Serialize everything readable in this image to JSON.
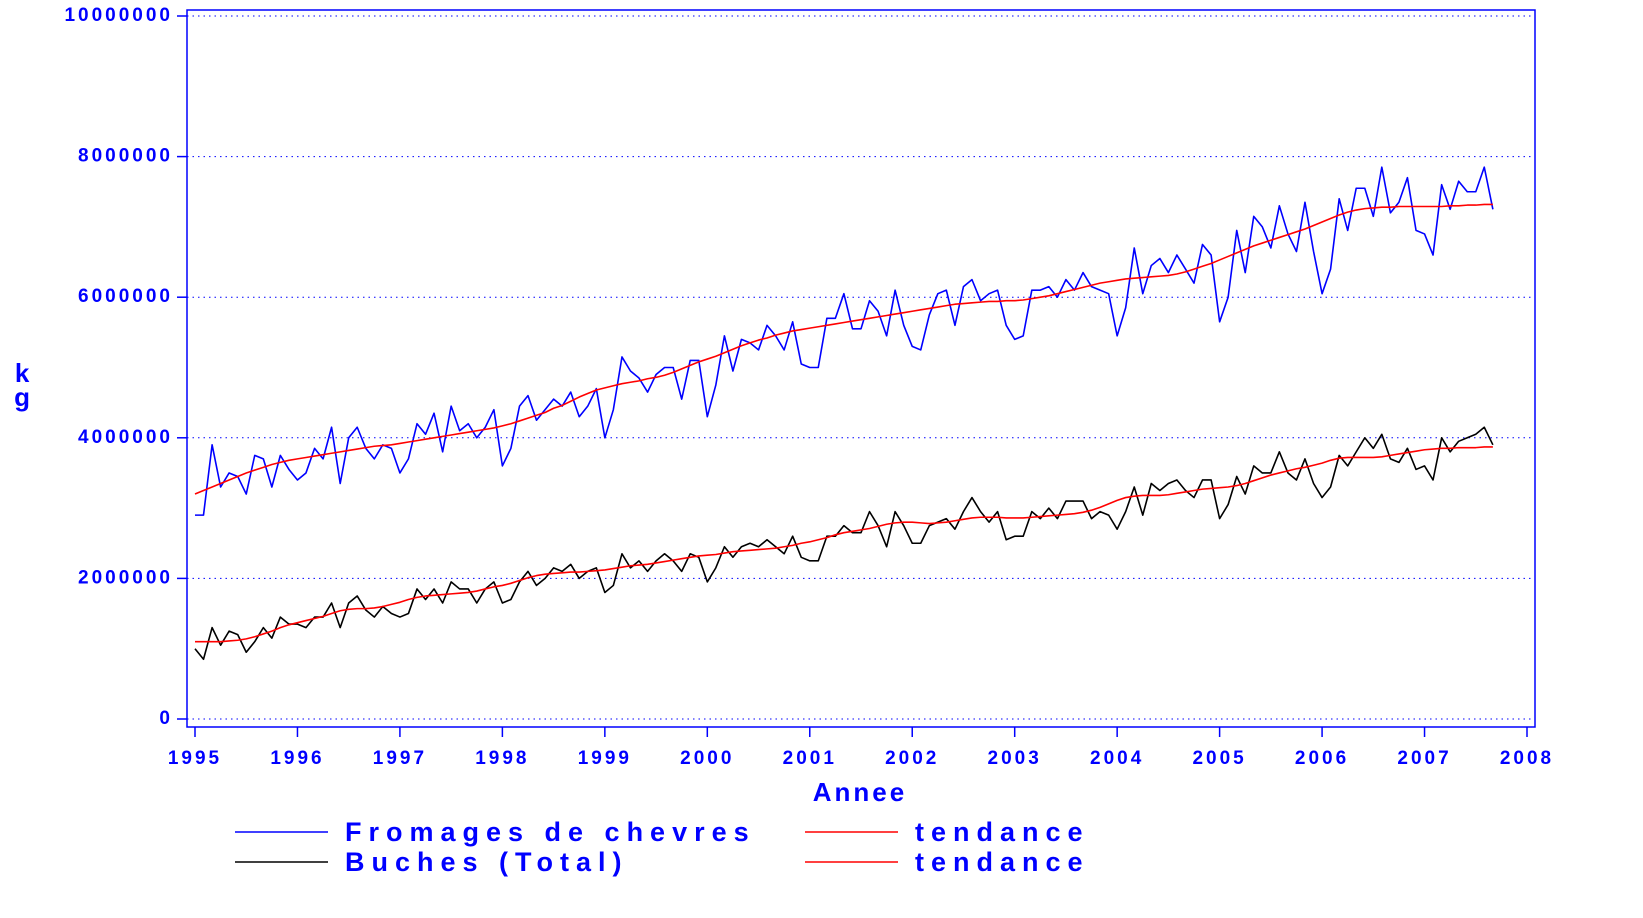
{
  "chart_data": {
    "type": "line",
    "xlabel": "Annee",
    "ylabel": "kg",
    "xlim": [
      1995,
      2008
    ],
    "ylim": [
      0,
      10000000
    ],
    "xticks": [
      1995,
      1996,
      1997,
      1998,
      1999,
      2000,
      2001,
      2002,
      2003,
      2004,
      2005,
      2006,
      2007,
      2008
    ],
    "yticks": [
      0,
      2000000,
      4000000,
      6000000,
      8000000,
      10000000
    ],
    "grid": true,
    "legend": "bottom",
    "x": [
      1995.0,
      1995.083,
      1995.167,
      1995.25,
      1995.333,
      1995.417,
      1995.5,
      1995.583,
      1995.667,
      1995.75,
      1995.833,
      1995.917,
      1996.0,
      1996.083,
      1996.167,
      1996.25,
      1996.333,
      1996.417,
      1996.5,
      1996.583,
      1996.667,
      1996.75,
      1996.833,
      1996.917,
      1997.0,
      1997.083,
      1997.167,
      1997.25,
      1997.333,
      1997.417,
      1997.5,
      1997.583,
      1997.667,
      1997.75,
      1997.833,
      1997.917,
      1998.0,
      1998.083,
      1998.167,
      1998.25,
      1998.333,
      1998.417,
      1998.5,
      1998.583,
      1998.667,
      1998.75,
      1998.833,
      1998.917,
      1999.0,
      1999.083,
      1999.167,
      1999.25,
      1999.333,
      1999.417,
      1999.5,
      1999.583,
      1999.667,
      1999.75,
      1999.833,
      1999.917,
      2000.0,
      2000.083,
      2000.167,
      2000.25,
      2000.333,
      2000.417,
      2000.5,
      2000.583,
      2000.667,
      2000.75,
      2000.833,
      2000.917,
      2001.0,
      2001.083,
      2001.167,
      2001.25,
      2001.333,
      2001.417,
      2001.5,
      2001.583,
      2001.667,
      2001.75,
      2001.833,
      2001.917,
      2002.0,
      2002.083,
      2002.167,
      2002.25,
      2002.333,
      2002.417,
      2002.5,
      2002.583,
      2002.667,
      2002.75,
      2002.833,
      2002.917,
      2003.0,
      2003.083,
      2003.167,
      2003.25,
      2003.333,
      2003.417,
      2003.5,
      2003.583,
      2003.667,
      2003.75,
      2003.833,
      2003.917,
      2004.0,
      2004.083,
      2004.167,
      2004.25,
      2004.333,
      2004.417,
      2004.5,
      2004.583,
      2004.667,
      2004.75,
      2004.833,
      2004.917,
      2005.0,
      2005.083,
      2005.167,
      2005.25,
      2005.333,
      2005.417,
      2005.5,
      2005.583,
      2005.667,
      2005.75,
      2005.833,
      2005.917,
      2006.0,
      2006.083,
      2006.167,
      2006.25,
      2006.333,
      2006.417,
      2006.5,
      2006.583,
      2006.667,
      2006.75,
      2006.833,
      2006.917,
      2007.0,
      2007.083,
      2007.167,
      2007.25,
      2007.333,
      2007.417,
      2007.5,
      2007.583,
      2007.667
    ],
    "series": [
      {
        "name": "Fromages de chevres",
        "color": "#0000ff",
        "values": [
          2900000.0,
          2900000.0,
          3900000.0,
          3300000.0,
          3500000.0,
          3450000.0,
          3200000.0,
          3750000.0,
          3700000.0,
          3300000.0,
          3750000.0,
          3550000.0,
          3400000.0,
          3500000.0,
          3850000.0,
          3700000.0,
          4150000.0,
          3350000.0,
          4000000.0,
          4150000.0,
          3850000.0,
          3700000.0,
          3900000.0,
          3850000.0,
          3500000.0,
          3700000.0,
          4200000.0,
          4050000.0,
          4350000.0,
          3800000.0,
          4450000.0,
          4100000.0,
          4200000.0,
          4000000.0,
          4150000.0,
          4400000.0,
          3600000.0,
          3850000.0,
          4450000.0,
          4600000.0,
          4250000.0,
          4400000.0,
          4550000.0,
          4450000.0,
          4650000.0,
          4300000.0,
          4450000.0,
          4700000.0,
          4000000.0,
          4400000.0,
          5150000.0,
          4950000.0,
          4850000.0,
          4650000.0,
          4900000.0,
          5000000.0,
          5000000.0,
          4550000.0,
          5100000.0,
          5100000.0,
          4300000.0,
          4750000.0,
          5450000.0,
          4950000.0,
          5400000.0,
          5350000.0,
          5250000.0,
          5600000.0,
          5450000.0,
          5250000.0,
          5650000.0,
          5050000.0,
          5000000.0,
          5000000.0,
          5700000.0,
          5700000.0,
          6050000.0,
          5550000.0,
          5550000.0,
          5950000.0,
          5800000.0,
          5450000.0,
          6100000.0,
          5600000.0,
          5300000.0,
          5250000.0,
          5750000.0,
          6050000.0,
          6100000.0,
          5600000.0,
          6150000.0,
          6250000.0,
          5950000.0,
          6050000.0,
          6100000.0,
          5600000.0,
          5400000.0,
          5450000.0,
          6100000.0,
          6100000.0,
          6150000.0,
          6000000.0,
          6250000.0,
          6100000.0,
          6350000.0,
          6150000.0,
          6100000.0,
          6050000.0,
          5450000.0,
          5850000.0,
          6700000.0,
          6050000.0,
          6450000.0,
          6550000.0,
          6350000.0,
          6600000.0,
          6400000.0,
          6200000.0,
          6750000.0,
          6600000.0,
          5650000.0,
          6000000.0,
          6950000.0,
          6350000.0,
          7150000.0,
          7000000.0,
          6700000.0,
          7300000.0,
          6900000.0,
          6650000.0,
          7350000.0,
          6650000.0,
          6050000.0,
          6400000.0,
          7400000.0,
          6950000.0,
          7550000.0,
          7550000.0,
          7150000.0,
          7850000.0,
          7200000.0,
          7350000.0,
          7700000.0,
          6950000.0,
          6900000.0,
          6600000.0,
          7600000.0,
          7250000.0,
          7650000.0,
          7500000.0,
          7500000.0,
          7850000.0,
          7250000.0
        ]
      },
      {
        "name": "tendance",
        "color": "#ff0000",
        "values": [
          3200000.0,
          3250000.0,
          3300000.0,
          3350000.0,
          3400000.0,
          3450000.0,
          3500000.0,
          3540000.0,
          3580000.0,
          3620000.0,
          3650000.0,
          3680000.0,
          3700000.0,
          3720000.0,
          3740000.0,
          3760000.0,
          3780000.0,
          3800000.0,
          3820000.0,
          3840000.0,
          3860000.0,
          3880000.0,
          3890000.0,
          3900000.0,
          3920000.0,
          3940000.0,
          3960000.0,
          3980000.0,
          4000000.0,
          4020000.0,
          4040000.0,
          4060000.0,
          4080000.0,
          4100000.0,
          4120000.0,
          4140000.0,
          4170000.0,
          4200000.0,
          4240000.0,
          4280000.0,
          4320000.0,
          4360000.0,
          4420000.0,
          4460000.0,
          4520000.0,
          4580000.0,
          4630000.0,
          4680000.0,
          4710000.0,
          4740000.0,
          4770000.0,
          4790000.0,
          4810000.0,
          4840000.0,
          4860000.0,
          4890000.0,
          4930000.0,
          4980000.0,
          5030000.0,
          5080000.0,
          5120000.0,
          5160000.0,
          5210000.0,
          5260000.0,
          5310000.0,
          5350000.0,
          5390000.0,
          5420000.0,
          5460000.0,
          5490000.0,
          5520000.0,
          5540000.0,
          5560000.0,
          5580000.0,
          5600000.0,
          5620000.0,
          5640000.0,
          5660000.0,
          5680000.0,
          5700000.0,
          5720000.0,
          5740000.0,
          5760000.0,
          5780000.0,
          5800000.0,
          5820000.0,
          5840000.0,
          5860000.0,
          5880000.0,
          5900000.0,
          5910000.0,
          5920000.0,
          5930000.0,
          5940000.0,
          5940000.0,
          5950000.0,
          5950000.0,
          5960000.0,
          5980000.0,
          6000000.0,
          6020000.0,
          6050000.0,
          6080000.0,
          6110000.0,
          6140000.0,
          6170000.0,
          6200000.0,
          6220000.0,
          6240000.0,
          6260000.0,
          6270000.0,
          6280000.0,
          6290000.0,
          6300000.0,
          6310000.0,
          6330000.0,
          6360000.0,
          6400000.0,
          6440000.0,
          6480000.0,
          6530000.0,
          6580000.0,
          6630000.0,
          6680000.0,
          6730000.0,
          6770000.0,
          6810000.0,
          6850000.0,
          6890000.0,
          6930000.0,
          6970000.0,
          7020000.0,
          7070000.0,
          7120000.0,
          7170000.0,
          7210000.0,
          7240000.0,
          7260000.0,
          7270000.0,
          7280000.0,
          7280000.0,
          7290000.0,
          7290000.0,
          7290000.0,
          7290000.0,
          7290000.0,
          7290000.0,
          7300000.0,
          7300000.0,
          7310000.0,
          7310000.0,
          7320000.0,
          7320000.0
        ]
      },
      {
        "name": "Buches (Total)",
        "color": "#000000",
        "values": [
          1000000.0,
          850000.0,
          1300000.0,
          1050000.0,
          1250000.0,
          1200000.0,
          950000.0,
          1100000.0,
          1300000.0,
          1150000.0,
          1450000.0,
          1350000.0,
          1350000.0,
          1300000.0,
          1450000.0,
          1450000.0,
          1650000.0,
          1300000.0,
          1650000.0,
          1750000.0,
          1550000.0,
          1450000.0,
          1600000.0,
          1500000.0,
          1450000.0,
          1500000.0,
          1850000.0,
          1700000.0,
          1850000.0,
          1650000.0,
          1950000.0,
          1850000.0,
          1850000.0,
          1650000.0,
          1850000.0,
          1950000.0,
          1650000.0,
          1700000.0,
          1950000.0,
          2100000.0,
          1900000.0,
          2000000.0,
          2150000.0,
          2100000.0,
          2200000.0,
          2000000.0,
          2100000.0,
          2150000.0,
          1800000.0,
          1900000.0,
          2350000.0,
          2150000.0,
          2250000.0,
          2100000.0,
          2250000.0,
          2350000.0,
          2250000.0,
          2100000.0,
          2350000.0,
          2300000.0,
          1950000.0,
          2150000.0,
          2450000.0,
          2300000.0,
          2450000.0,
          2500000.0,
          2450000.0,
          2550000.0,
          2450000.0,
          2350000.0,
          2600000.0,
          2300000.0,
          2250000.0,
          2250000.0,
          2600000.0,
          2600000.0,
          2750000.0,
          2650000.0,
          2650000.0,
          2950000.0,
          2750000.0,
          2450000.0,
          2950000.0,
          2750000.0,
          2500000.0,
          2500000.0,
          2750000.0,
          2800000.0,
          2850000.0,
          2700000.0,
          2950000.0,
          3150000.0,
          2950000.0,
          2800000.0,
          2950000.0,
          2550000.0,
          2600000.0,
          2600000.0,
          2950000.0,
          2850000.0,
          3000000.0,
          2850000.0,
          3100000.0,
          3100000.0,
          3100000.0,
          2850000.0,
          2950000.0,
          2900000.0,
          2700000.0,
          2950000.0,
          3300000.0,
          2900000.0,
          3350000.0,
          3250000.0,
          3350000.0,
          3400000.0,
          3250000.0,
          3150000.0,
          3400000.0,
          3400000.0,
          2850000.0,
          3050000.0,
          3450000.0,
          3200000.0,
          3600000.0,
          3500000.0,
          3500000.0,
          3800000.0,
          3500000.0,
          3400000.0,
          3700000.0,
          3350000.0,
          3150000.0,
          3300000.0,
          3750000.0,
          3600000.0,
          3800000.0,
          4000000.0,
          3850000.0,
          4050000.0,
          3700000.0,
          3650000.0,
          3850000.0,
          3550000.0,
          3600000.0,
          3400000.0,
          4000000.0,
          3800000.0,
          3950000.0,
          4000000.0,
          4050000.0,
          4150000.0,
          3900000.0
        ]
      },
      {
        "name": "tendance",
        "color": "#ff0000",
        "values": [
          1100000.0,
          1100000.0,
          1100000.0,
          1100000.0,
          1110000.0,
          1120000.0,
          1140000.0,
          1170000.0,
          1210000.0,
          1250000.0,
          1300000.0,
          1340000.0,
          1370000.0,
          1400000.0,
          1430000.0,
          1460000.0,
          1500000.0,
          1540000.0,
          1560000.0,
          1570000.0,
          1570000.0,
          1580000.0,
          1600000.0,
          1630000.0,
          1660000.0,
          1700000.0,
          1730000.0,
          1750000.0,
          1760000.0,
          1770000.0,
          1780000.0,
          1790000.0,
          1800000.0,
          1820000.0,
          1850000.0,
          1880000.0,
          1900000.0,
          1930000.0,
          1970000.0,
          2010000.0,
          2040000.0,
          2060000.0,
          2070000.0,
          2080000.0,
          2090000.0,
          2090000.0,
          2100000.0,
          2110000.0,
          2120000.0,
          2140000.0,
          2160000.0,
          2180000.0,
          2190000.0,
          2200000.0,
          2220000.0,
          2240000.0,
          2260000.0,
          2280000.0,
          2300000.0,
          2320000.0,
          2330000.0,
          2340000.0,
          2360000.0,
          2380000.0,
          2390000.0,
          2400000.0,
          2410000.0,
          2420000.0,
          2430000.0,
          2450000.0,
          2470000.0,
          2500000.0,
          2520000.0,
          2550000.0,
          2580000.0,
          2620000.0,
          2650000.0,
          2670000.0,
          2690000.0,
          2710000.0,
          2740000.0,
          2770000.0,
          2790000.0,
          2800000.0,
          2800000.0,
          2790000.0,
          2780000.0,
          2790000.0,
          2800000.0,
          2820000.0,
          2840000.0,
          2860000.0,
          2870000.0,
          2870000.0,
          2870000.0,
          2860000.0,
          2860000.0,
          2860000.0,
          2870000.0,
          2880000.0,
          2890000.0,
          2900000.0,
          2910000.0,
          2920000.0,
          2940000.0,
          2970000.0,
          3010000.0,
          3060000.0,
          3110000.0,
          3150000.0,
          3170000.0,
          3180000.0,
          3180000.0,
          3180000.0,
          3190000.0,
          3210000.0,
          3230000.0,
          3250000.0,
          3270000.0,
          3280000.0,
          3290000.0,
          3300000.0,
          3320000.0,
          3350000.0,
          3390000.0,
          3430000.0,
          3470000.0,
          3500000.0,
          3530000.0,
          3560000.0,
          3580000.0,
          3610000.0,
          3640000.0,
          3680000.0,
          3710000.0,
          3720000.0,
          3720000.0,
          3720000.0,
          3720000.0,
          3730000.0,
          3750000.0,
          3770000.0,
          3790000.0,
          3810000.0,
          3830000.0,
          3840000.0,
          3850000.0,
          3850000.0,
          3860000.0,
          3860000.0,
          3860000.0,
          3870000.0,
          3870000.0
        ]
      }
    ]
  }
}
